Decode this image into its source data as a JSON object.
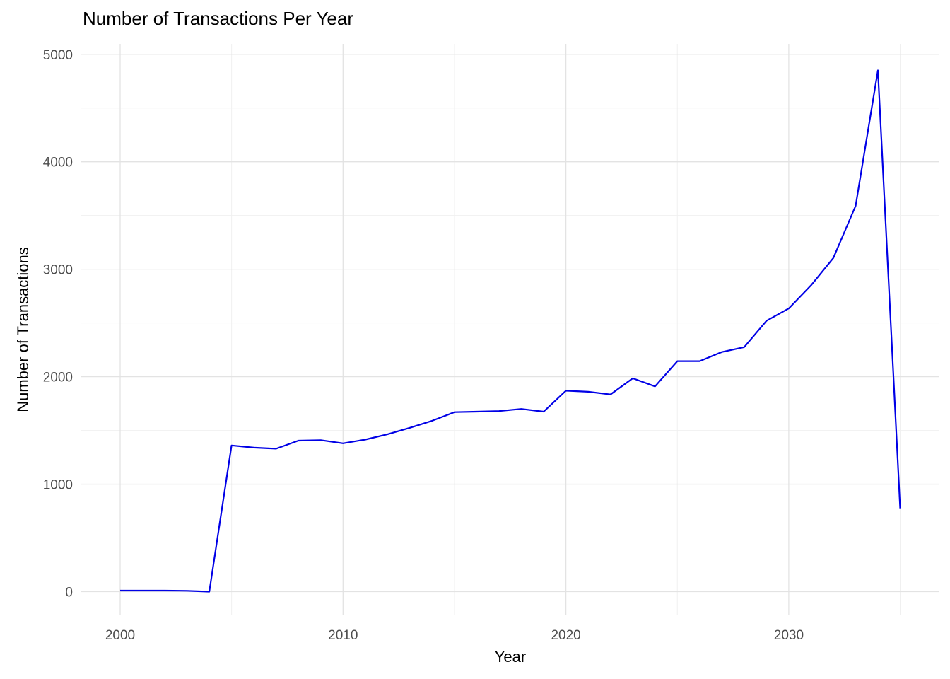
{
  "chart_data": {
    "type": "line",
    "title": "Number of Transactions Per Year",
    "xlabel": "Year",
    "ylabel": "Number of Transactions",
    "x": [
      2000,
      2001,
      2002,
      2003,
      2004,
      2005,
      2006,
      2007,
      2008,
      2009,
      2010,
      2011,
      2012,
      2013,
      2014,
      2015,
      2016,
      2017,
      2018,
      2019,
      2020,
      2021,
      2022,
      2023,
      2024,
      2025,
      2026,
      2027,
      2028,
      2029,
      2030,
      2031,
      2032,
      2033,
      2034,
      2035
    ],
    "y": [
      10,
      10,
      10,
      8,
      0,
      1360,
      1340,
      1330,
      1405,
      1410,
      1380,
      1415,
      1465,
      1525,
      1590,
      1670,
      1675,
      1680,
      1700,
      1675,
      1870,
      1860,
      1835,
      1985,
      1910,
      2145,
      2145,
      2230,
      2275,
      2520,
      2635,
      2850,
      3105,
      3590,
      4850,
      775
    ],
    "xlim": [
      2000,
      2035
    ],
    "ylim": [
      0,
      5000
    ],
    "x_major_ticks": [
      "2000",
      "2010",
      "2020",
      "2030"
    ],
    "x_major_tick_values": [
      2000,
      2010,
      2020,
      2030
    ],
    "x_minor_tick_values": [
      2005,
      2015,
      2025,
      2035
    ],
    "y_major_ticks": [
      "0",
      "1000",
      "2000",
      "3000",
      "4000",
      "5000"
    ],
    "y_major_tick_values": [
      0,
      1000,
      2000,
      3000,
      4000,
      5000
    ],
    "y_minor_tick_values": [
      500,
      1500,
      2500,
      3500,
      4500
    ],
    "grid": true,
    "legend": "none",
    "line_color": "#0000E6",
    "background_color": "#FFFFFF",
    "major_gridline_color": "#E3E3E3",
    "minor_gridline_color": "#F0F0F0",
    "tick_label_color": "#4D4D4D",
    "title_color": "#000000"
  }
}
